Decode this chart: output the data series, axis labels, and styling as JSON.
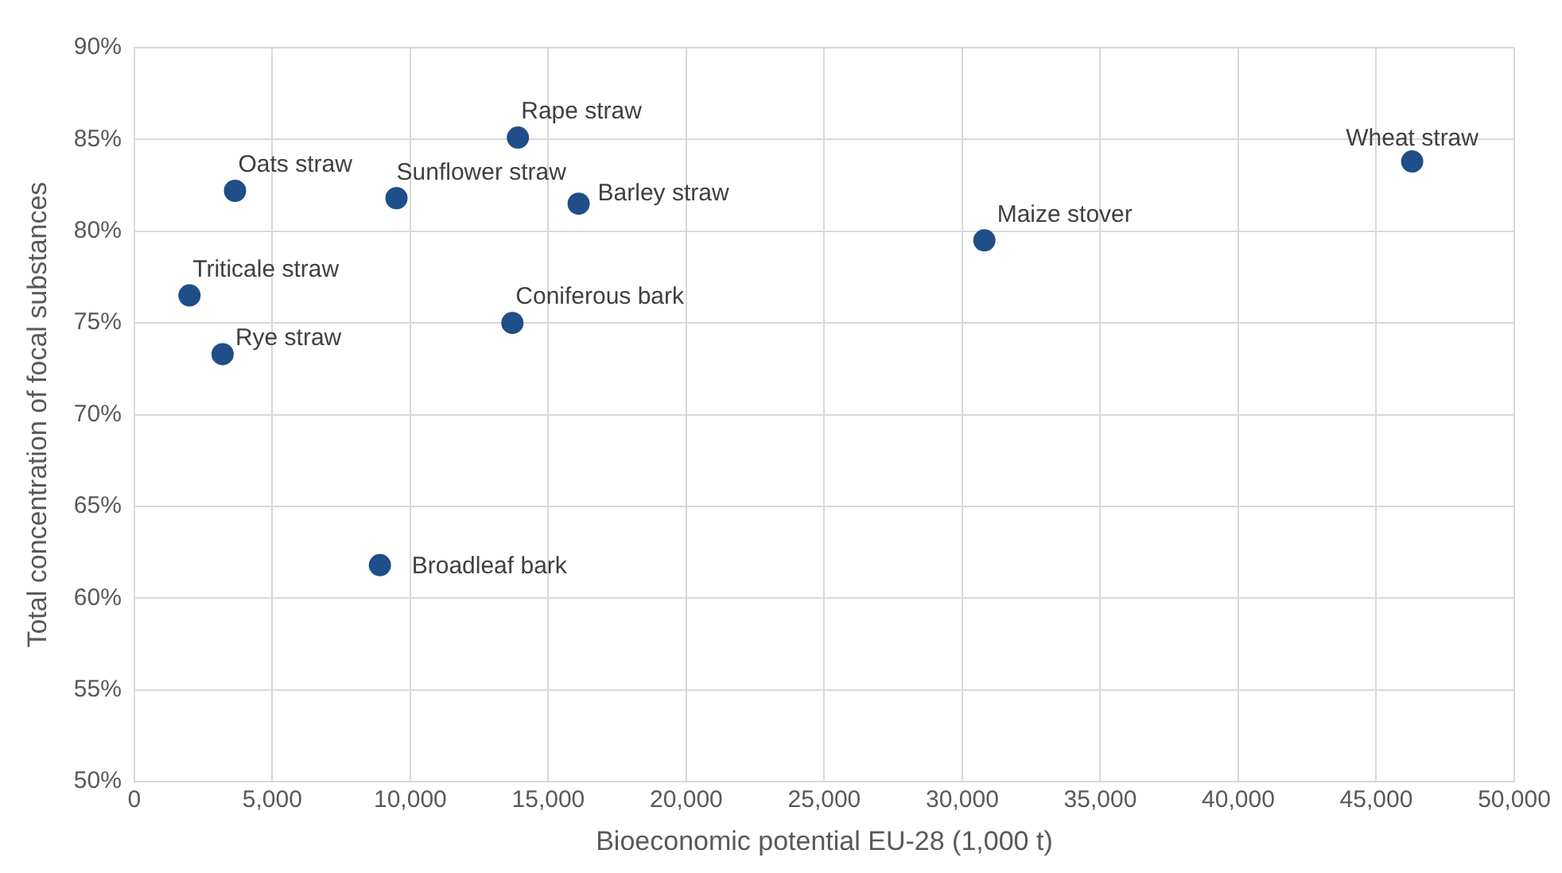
{
  "chart_data": {
    "type": "scatter",
    "xlabel": "Bioeconomic potential EU-28 (1,000 t)",
    "ylabel": "Total concentration of focal substances",
    "x": [
      3650,
      9500,
      13900,
      16100,
      2000,
      13700,
      3200,
      8900,
      30800,
      46300
    ],
    "values": [
      82.2,
      81.8,
      85.1,
      81.5,
      76.5,
      75.0,
      73.3,
      61.8,
      79.5,
      83.8
    ],
    "value_labels": [
      "Oats straw",
      "Sunflower straw",
      "Rape straw",
      "Barley straw",
      "Triticale straw",
      "Coniferous bark",
      "Rye straw",
      "Broadleaf bark",
      "Maize stover",
      "Wheat straw"
    ],
    "color": "#1f4e89",
    "marker": "circle",
    "grid": true,
    "legend": false,
    "xlim": [
      0,
      50000
    ],
    "xticks": [
      {
        "value": 0,
        "label": "0"
      },
      {
        "value": 5000,
        "label": "5,000"
      },
      {
        "value": 10000,
        "label": "10,000"
      },
      {
        "value": 15000,
        "label": "15,000"
      },
      {
        "value": 20000,
        "label": "20,000"
      },
      {
        "value": 25000,
        "label": "25,000"
      },
      {
        "value": 30000,
        "label": "30,000"
      },
      {
        "value": 35000,
        "label": "35,000"
      },
      {
        "value": 40000,
        "label": "40,000"
      },
      {
        "value": 45000,
        "label": "45,000"
      },
      {
        "value": 50000,
        "label": "50,000"
      }
    ],
    "ylim": [
      50,
      90
    ],
    "yticks": [
      {
        "value": 50,
        "label": "50%"
      },
      {
        "value": 55,
        "label": "55%"
      },
      {
        "value": 60,
        "label": "60%"
      },
      {
        "value": 65,
        "label": "65%"
      },
      {
        "value": 70,
        "label": "70%"
      },
      {
        "value": 75,
        "label": "75%"
      },
      {
        "value": 80,
        "label": "80%"
      },
      {
        "value": 85,
        "label": "85%"
      },
      {
        "value": 90,
        "label": "90%"
      }
    ]
  }
}
